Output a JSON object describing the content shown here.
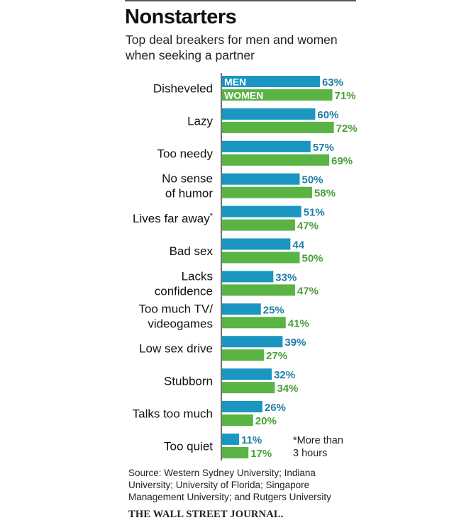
{
  "header": {
    "title": "Nonstarters",
    "subtitle": "Top deal breakers for men and women when seeking a partner"
  },
  "footnote": "*More than 3 hours",
  "source": "Source: Western Sydney University; Indiana University; University of Florida; Singapore Management University; and Rutgers University",
  "publisher": "THE WALL STREET JOURNAL.",
  "colors": {
    "men": "#1a96c0",
    "women": "#59b444",
    "men_text": "#1e7fa6",
    "women_text": "#4a9e3a"
  },
  "chart_data": {
    "type": "bar",
    "orientation": "horizontal",
    "title": "Nonstarters",
    "subtitle": "Top deal breakers for men and women when seeking a partner",
    "xlabel": "",
    "ylabel": "",
    "xlim": [
      0,
      100
    ],
    "grid": false,
    "legend": "inside-first-bars",
    "categories": [
      [
        "Disheveled"
      ],
      [
        "Lazy"
      ],
      [
        "Too needy"
      ],
      [
        "No sense",
        "of humor"
      ],
      [
        "Lives far away*"
      ],
      [
        "Bad sex"
      ],
      [
        "Lacks",
        "confidence"
      ],
      [
        "Too much TV/",
        "videogames"
      ],
      [
        "Low sex drive"
      ],
      [
        "Stubborn"
      ],
      [
        "Talks too much"
      ],
      [
        "Too quiet"
      ]
    ],
    "series": [
      {
        "name": "MEN",
        "values": [
          63,
          60,
          57,
          50,
          51,
          44,
          33,
          25,
          39,
          32,
          26,
          11
        ],
        "labels": [
          "63%",
          "60%",
          "57%",
          "50%",
          "51%",
          "44",
          "33%",
          "25%",
          "39%",
          "32%",
          "26%",
          "11%"
        ]
      },
      {
        "name": "WOMEN",
        "values": [
          71,
          72,
          69,
          58,
          47,
          50,
          47,
          41,
          27,
          34,
          20,
          17
        ],
        "labels": [
          "71%",
          "72%",
          "69%",
          "58%",
          "47%",
          "50%",
          "47%",
          "41%",
          "27%",
          "34%",
          "20%",
          "17%"
        ]
      }
    ]
  }
}
